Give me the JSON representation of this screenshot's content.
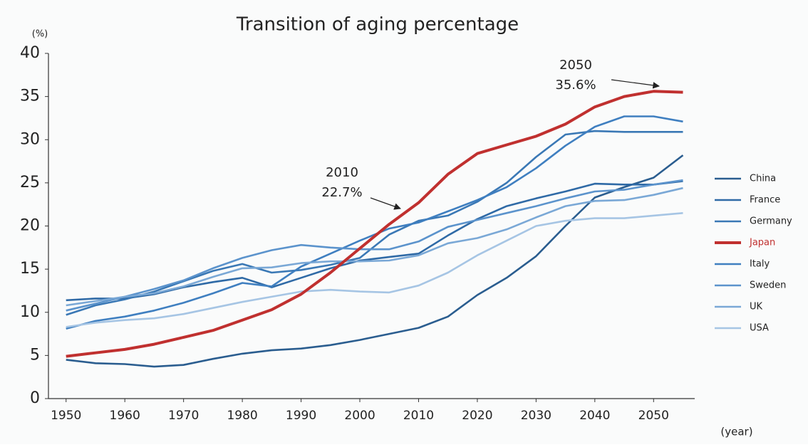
{
  "chart_data": {
    "type": "line",
    "title": "Transition of aging percentage",
    "y_axis_label": "(%)",
    "x_axis_label": "(year)",
    "x": [
      1950,
      1955,
      1960,
      1965,
      1970,
      1975,
      1980,
      1985,
      1990,
      1995,
      2000,
      2005,
      2010,
      2015,
      2020,
      2025,
      2030,
      2035,
      2040,
      2045,
      2050,
      2055
    ],
    "xlim": [
      1947,
      2057
    ],
    "xticks": [
      1950,
      1960,
      1970,
      1980,
      1990,
      2000,
      2010,
      2020,
      2030,
      2040,
      2050
    ],
    "ylim": [
      0,
      40
    ],
    "yticks": [
      0,
      5,
      10,
      15,
      20,
      25,
      30,
      35,
      40
    ],
    "grid": false,
    "legend": "right",
    "series": [
      {
        "name": "China",
        "color": "#2a5d8f",
        "values": [
          4.5,
          4.1,
          4.0,
          3.7,
          3.9,
          4.6,
          5.2,
          5.6,
          5.8,
          6.2,
          6.8,
          7.5,
          8.2,
          9.5,
          12.0,
          14.0,
          16.5,
          20.0,
          23.3,
          24.5,
          25.6,
          28.2
        ]
      },
      {
        "name": "France",
        "color": "#2f6aa6",
        "values": [
          11.4,
          11.6,
          11.6,
          12.1,
          12.9,
          13.5,
          14.0,
          12.9,
          14.0,
          15.1,
          16.0,
          16.4,
          16.8,
          18.9,
          20.8,
          22.3,
          23.2,
          24.0,
          24.9,
          24.8,
          24.8,
          25.2
        ]
      },
      {
        "name": "Germany",
        "color": "#3a78b5",
        "values": [
          9.7,
          10.8,
          11.5,
          12.4,
          13.6,
          14.8,
          15.6,
          14.6,
          14.9,
          15.5,
          16.3,
          19.0,
          20.6,
          21.2,
          22.8,
          25.0,
          28.0,
          30.6,
          31.0,
          30.9,
          30.9,
          30.9
        ]
      },
      {
        "name": "Japan",
        "color": "#c0302f",
        "highlight": true,
        "values": [
          4.9,
          5.3,
          5.7,
          6.3,
          7.1,
          7.9,
          9.1,
          10.3,
          12.1,
          14.6,
          17.4,
          20.2,
          22.7,
          26.0,
          28.4,
          29.4,
          30.4,
          31.8,
          33.8,
          35.0,
          35.6,
          35.5
        ]
      },
      {
        "name": "Italy",
        "color": "#3f7fc0",
        "values": [
          8.1,
          9.0,
          9.5,
          10.2,
          11.1,
          12.2,
          13.4,
          13.0,
          15.3,
          16.8,
          18.3,
          19.7,
          20.4,
          21.7,
          23.0,
          24.5,
          26.7,
          29.3,
          31.5,
          32.7,
          32.7,
          32.1
        ]
      },
      {
        "name": "Sweden",
        "color": "#5b93cc",
        "values": [
          10.2,
          11.0,
          11.8,
          12.7,
          13.7,
          15.1,
          16.3,
          17.2,
          17.8,
          17.5,
          17.3,
          17.3,
          18.2,
          19.9,
          20.7,
          21.5,
          22.3,
          23.2,
          24.0,
          24.2,
          24.8,
          25.3
        ]
      },
      {
        "name": "UK",
        "color": "#7aa8d6",
        "values": [
          10.8,
          11.3,
          11.8,
          12.2,
          13.0,
          14.1,
          15.1,
          15.2,
          15.7,
          15.9,
          15.9,
          16.0,
          16.6,
          18.0,
          18.6,
          19.6,
          21.0,
          22.3,
          22.9,
          23.0,
          23.6,
          24.4
        ]
      },
      {
        "name": "USA",
        "color": "#a6c5e4",
        "values": [
          8.3,
          8.8,
          9.1,
          9.3,
          9.8,
          10.5,
          11.2,
          11.8,
          12.4,
          12.6,
          12.4,
          12.3,
          13.1,
          14.6,
          16.6,
          18.3,
          20.0,
          20.6,
          20.9,
          20.9,
          21.2,
          21.5
        ]
      }
    ],
    "annotations": [
      {
        "lines": [
          "2010",
          "22.7%"
        ]
      },
      {
        "lines": [
          "2050",
          "35.6%"
        ]
      }
    ]
  }
}
